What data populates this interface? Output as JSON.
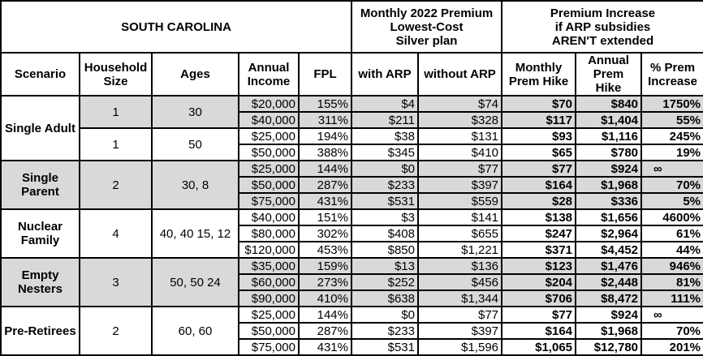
{
  "title": "SOUTH CAROLINA",
  "group_headers": {
    "premium": [
      "Monthly 2022 Premium",
      "Lowest-Cost",
      "Silver plan"
    ],
    "increase": [
      "Premium Increase",
      "if ARP subsidies",
      "AREN'T extended"
    ]
  },
  "columns": [
    "Scenario",
    "Household Size",
    "Ages",
    "Annual Income",
    "FPL",
    "with ARP",
    "without ARP",
    "Monthly Prem Hike",
    "Annual Prem Hike",
    "% Prem Increase"
  ],
  "colors": {
    "shade": "#d9d9d9",
    "border": "#000000"
  },
  "scenarios": [
    {
      "name": "Single Adult",
      "shaded": false,
      "subgroups": [
        {
          "size": "1",
          "ages": "30",
          "shaded": true,
          "rows": [
            [
              "$20,000",
              "155%",
              "$4",
              "$74",
              "$70",
              "$840",
              "1750%"
            ],
            [
              "$40,000",
              "311%",
              "$211",
              "$328",
              "$117",
              "$1,404",
              "55%"
            ]
          ]
        },
        {
          "size": "1",
          "ages": "50",
          "shaded": false,
          "rows": [
            [
              "$25,000",
              "194%",
              "$38",
              "$131",
              "$93",
              "$1,116",
              "245%"
            ],
            [
              "$50,000",
              "388%",
              "$345",
              "$410",
              "$65",
              "$780",
              "19%"
            ]
          ]
        }
      ]
    },
    {
      "name": "Single Parent",
      "shaded": true,
      "subgroups": [
        {
          "size": "2",
          "ages": "30, 8",
          "shaded": true,
          "rows": [
            [
              "$25,000",
              "144%",
              "$0",
              "$77",
              "$77",
              "$924",
              "∞"
            ],
            [
              "$50,000",
              "287%",
              "$233",
              "$397",
              "$164",
              "$1,968",
              "70%"
            ],
            [
              "$75,000",
              "431%",
              "$531",
              "$559",
              "$28",
              "$336",
              "5%"
            ]
          ]
        }
      ]
    },
    {
      "name": "Nuclear Family",
      "shaded": false,
      "subgroups": [
        {
          "size": "4",
          "ages": "40, 40 15, 12",
          "shaded": false,
          "rows": [
            [
              "$40,000",
              "151%",
              "$3",
              "$141",
              "$138",
              "$1,656",
              "4600%"
            ],
            [
              "$80,000",
              "302%",
              "$408",
              "$655",
              "$247",
              "$2,964",
              "61%"
            ],
            [
              "$120,000",
              "453%",
              "$850",
              "$1,221",
              "$371",
              "$4,452",
              "44%"
            ]
          ]
        }
      ]
    },
    {
      "name": "Empty Nesters",
      "shaded": true,
      "subgroups": [
        {
          "size": "3",
          "ages": "50, 50 24",
          "shaded": true,
          "rows": [
            [
              "$35,000",
              "159%",
              "$13",
              "$136",
              "$123",
              "$1,476",
              "946%"
            ],
            [
              "$60,000",
              "273%",
              "$252",
              "$456",
              "$204",
              "$2,448",
              "81%"
            ],
            [
              "$90,000",
              "410%",
              "$638",
              "$1,344",
              "$706",
              "$8,472",
              "111%"
            ]
          ]
        }
      ]
    },
    {
      "name": "Pre-Retirees",
      "shaded": false,
      "subgroups": [
        {
          "size": "2",
          "ages": "60, 60",
          "shaded": false,
          "rows": [
            [
              "$25,000",
              "144%",
              "$0",
              "$77",
              "$77",
              "$924",
              "∞"
            ],
            [
              "$50,000",
              "287%",
              "$233",
              "$397",
              "$164",
              "$1,968",
              "70%"
            ],
            [
              "$75,000",
              "431%",
              "$531",
              "$1,596",
              "$1,065",
              "$12,780",
              "201%"
            ]
          ]
        }
      ]
    }
  ]
}
